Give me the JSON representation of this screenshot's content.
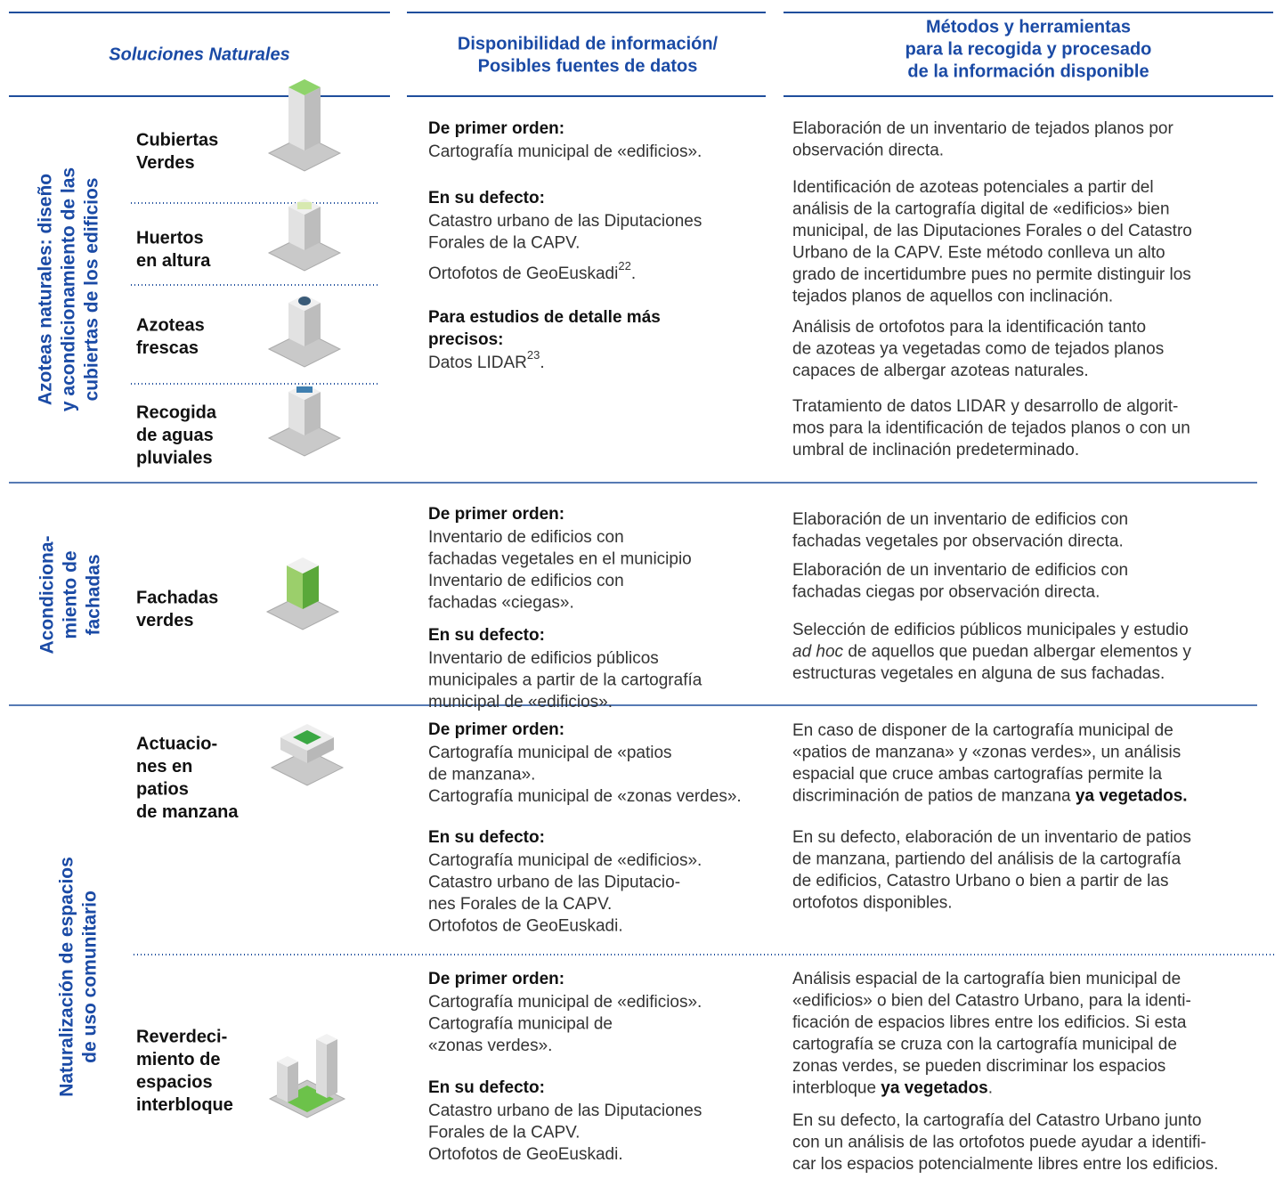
{
  "header": {
    "columns": [
      [
        "Soluciones Naturales"
      ],
      [
        "Disponibilidad de información/",
        "Posibles fuentes de datos"
      ],
      [
        "Métodos y herramientas",
        "para la recogida y procesado",
        "de la información disponible"
      ]
    ]
  },
  "sections": [
    {
      "group": [
        "Azoteas naturales: diseño",
        "y acondicionamiento de las",
        "cubiertas de los edificios"
      ],
      "rows": [
        {
          "items": [
            [
              "Cubiertas",
              "Verdes"
            ],
            [
              "Huertos",
              "en altura"
            ],
            [
              "Azoteas",
              "frescas"
            ],
            [
              "Recogida",
              "de aguas",
              "pluviales"
            ]
          ],
          "sources": [
            {
              "heading": [
                "De primer orden:"
              ],
              "paras": [
                [
                  "Cartografía municipal de «edificios»."
                ]
              ]
            },
            {
              "heading": [
                "En su defecto:"
              ],
              "paras": [
                [
                  "Catastro urbano de las Diputaciones",
                  "Forales de la CAPV."
                ],
                [
                  [
                    {
                      "text": "Ortofotos de GeoEuskadi"
                    },
                    {
                      "text": "22",
                      "style": "sup"
                    },
                    {
                      "text": "."
                    }
                  ]
                ]
              ]
            },
            {
              "heading": [
                "Para estudios de detalle más",
                "precisos:"
              ],
              "paras": [
                [
                  [
                    {
                      "text": "Datos LIDAR"
                    },
                    {
                      "text": "23",
                      "style": "sup"
                    },
                    {
                      "text": "."
                    }
                  ]
                ]
              ]
            }
          ],
          "methods": [
            [
              "Elaboración de un inventario de tejados planos por",
              "observación directa."
            ],
            [
              "Identificación de azoteas potenciales a partir del",
              "análisis de la cartografía digital de «edificios» bien",
              "municipal, de las Diputaciones Forales o del Catastro",
              "Urbano de la CAPV. Este método conlleva un alto",
              "grado de incertidumbre pues no permite distinguir los",
              "tejados planos de aquellos con inclinación."
            ],
            [
              "Análisis de ortofotos para la identificación tanto",
              "de azoteas ya vegetadas como de tejados planos",
              "capaces de albergar azoteas naturales."
            ],
            [
              "Tratamiento de datos LIDAR y desarrollo de algorit-",
              "mos para la identificación de tejados planos o con un",
              "umbral de inclinación predeterminado."
            ]
          ]
        }
      ]
    },
    {
      "group": [
        "Acondiciona-",
        "miento de",
        "fachadas"
      ],
      "rows": [
        {
          "items": [
            [
              "Fachadas",
              "verdes"
            ]
          ],
          "sources": [
            {
              "heading": [
                "De primer orden:"
              ],
              "paras": [
                [
                  "Inventario de edificios con",
                  "fachadas vegetales en el municipio",
                  "Inventario de edificios con",
                  "fachadas «ciegas»."
                ]
              ]
            },
            {
              "heading": [
                "En su defecto:"
              ],
              "paras": [
                [
                  "Inventario de edificios públicos",
                  "municipales a partir de la cartografía",
                  "municipal de «edificios»."
                ]
              ]
            }
          ],
          "methods": [
            [
              "Elaboración de un inventario de edificios con",
              "fachadas vegetales por observación directa."
            ],
            [
              "Elaboración de un inventario de edificios con",
              "fachadas ciegas por observación directa."
            ],
            [
              "Selección de edificios públicos municipales y estudio",
              [
                {
                  "text": "ad hoc",
                  "style": "italic"
                },
                {
                  "text": " de aquellos que puedan albergar elementos y"
                }
              ],
              "estructuras vegetales en alguna de sus fachadas."
            ]
          ]
        }
      ]
    },
    {
      "group": [
        "Naturalización de espacios",
        "de uso comunitario"
      ],
      "rows": [
        {
          "items": [
            [
              "Actuacio-",
              "nes en",
              "patios",
              "de manzana"
            ]
          ],
          "sources": [
            {
              "heading": [
                "De primer orden:"
              ],
              "paras": [
                [
                  "Cartografía municipal de «patios",
                  "de manzana».",
                  "Cartografía municipal de «zonas verdes»."
                ]
              ]
            },
            {
              "heading": [
                "En su defecto:"
              ],
              "paras": [
                [
                  "Cartografía municipal de «edificios».",
                  "Catastro urbano de las Diputacio-",
                  "nes Forales de la CAPV.",
                  "Ortofotos de GeoEuskadi."
                ]
              ]
            }
          ],
          "methods": [
            [
              "En caso de disponer de la cartografía municipal de",
              "«patios de manzana» y «zonas verdes», un análisis",
              "espacial que cruce ambas cartografías permite la",
              [
                {
                  "text": "discriminación de patios de manzana "
                },
                {
                  "text": "ya vegetados.",
                  "style": "bold"
                }
              ]
            ],
            [
              "En su defecto, elaboración de un inventario de patios",
              "de manzana, partiendo del análisis de la cartografía",
              "de edificios, Catastro Urbano o bien a partir de las",
              "ortofotos disponibles."
            ]
          ]
        },
        {
          "items": [
            [
              "Reverdeci-",
              "miento de",
              "espacios",
              "interbloque"
            ]
          ],
          "sources": [
            {
              "heading": [
                "De primer orden:"
              ],
              "paras": [
                [
                  "Cartografía municipal de «edificios».",
                  "Cartografía municipal de",
                  "«zonas verdes»."
                ]
              ]
            },
            {
              "heading": [
                "En su defecto:"
              ],
              "paras": [
                [
                  "Catastro urbano de las Diputaciones",
                  "Forales de la CAPV.",
                  "Ortofotos de GeoEuskadi."
                ]
              ]
            }
          ],
          "methods": [
            [
              "Análisis espacial de la cartografía bien municipal de",
              "«edificios» o bien del Catastro Urbano, para la identi-",
              "ficación de espacios libres entre los edificios. Si esta",
              "cartografía se cruza con la cartografía municipal de",
              "zonas verdes, se pueden discriminar los espacios",
              [
                {
                  "text": "interbloque "
                },
                {
                  "text": "ya vegetados",
                  "style": "bold"
                },
                {
                  "text": "."
                }
              ]
            ],
            [
              "En su defecto, la cartografía del Catastro Urbano junto",
              "con un análisis de las ortofotos puede ayudar a identifi-",
              "car los espacios potencialmente libres entre los edificios."
            ]
          ]
        }
      ]
    }
  ]
}
